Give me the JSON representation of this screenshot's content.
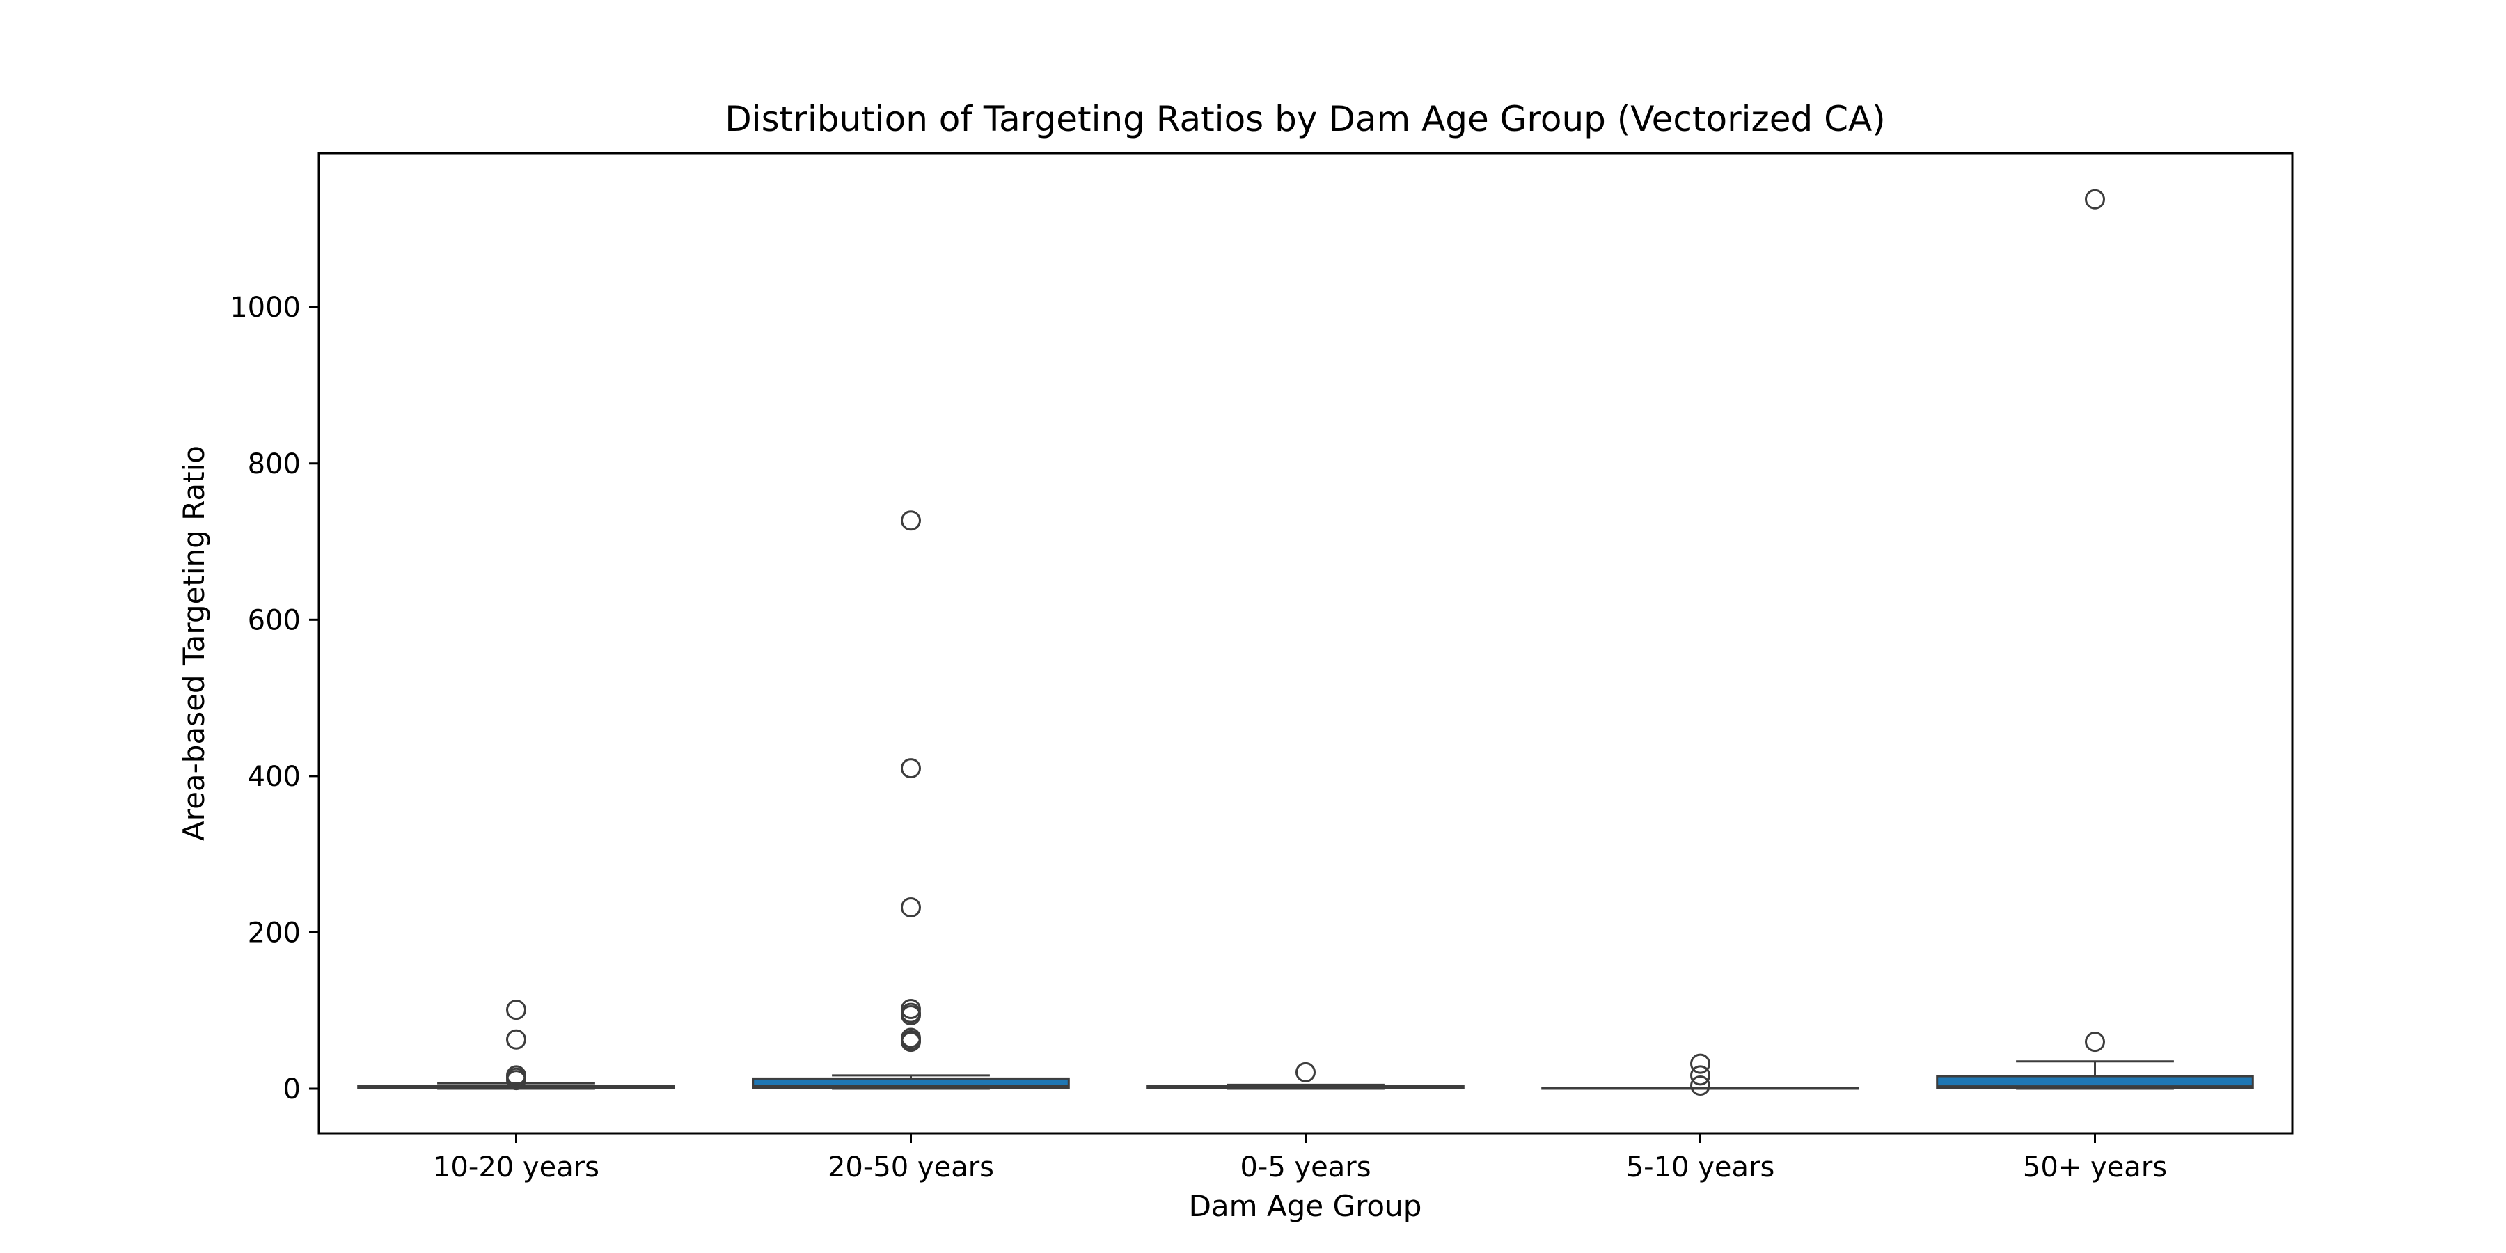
{
  "chart_data": {
    "type": "box",
    "title": "Distribution of Targeting Ratios by Dam Age Group (Vectorized CA)",
    "xlabel": "Dam Age Group",
    "ylabel": "Area-based Targeting Ratio",
    "ylim": [
      -57,
      1197
    ],
    "yticks": [
      0,
      200,
      400,
      600,
      800,
      1000
    ],
    "box_color": "#1f77b4",
    "line_color": "#3d3d3d",
    "grid": false,
    "categories": [
      "10-20 years",
      "20-50 years",
      "0-5 years",
      "5-10 years",
      "50+ years"
    ],
    "boxes": [
      {
        "category": "10-20 years",
        "whisker_low": 0,
        "q1": 0.5,
        "median": 2,
        "q3": 4,
        "whisker_high": 7,
        "outliers": [
          101,
          63,
          17,
          14,
          11
        ]
      },
      {
        "category": "20-50 years",
        "whisker_low": 0,
        "q1": 0.5,
        "median": 4,
        "q3": 13,
        "whisker_high": 17,
        "outliers": [
          727,
          410,
          232,
          102,
          97,
          94,
          65,
          62,
          60
        ]
      },
      {
        "category": "0-5 years",
        "whisker_low": 0,
        "q1": 0.5,
        "median": 1.5,
        "q3": 3.5,
        "whisker_high": 5,
        "outliers": [
          21
        ]
      },
      {
        "category": "5-10 years",
        "whisker_low": 0,
        "q1": 0,
        "median": 0,
        "q3": 1,
        "whisker_high": 1,
        "outliers": [
          32,
          17,
          4
        ]
      },
      {
        "category": "50+ years",
        "whisker_low": 0,
        "q1": 0.5,
        "median": 3,
        "q3": 16,
        "whisker_high": 35,
        "outliers": [
          1138,
          60
        ]
      }
    ]
  }
}
